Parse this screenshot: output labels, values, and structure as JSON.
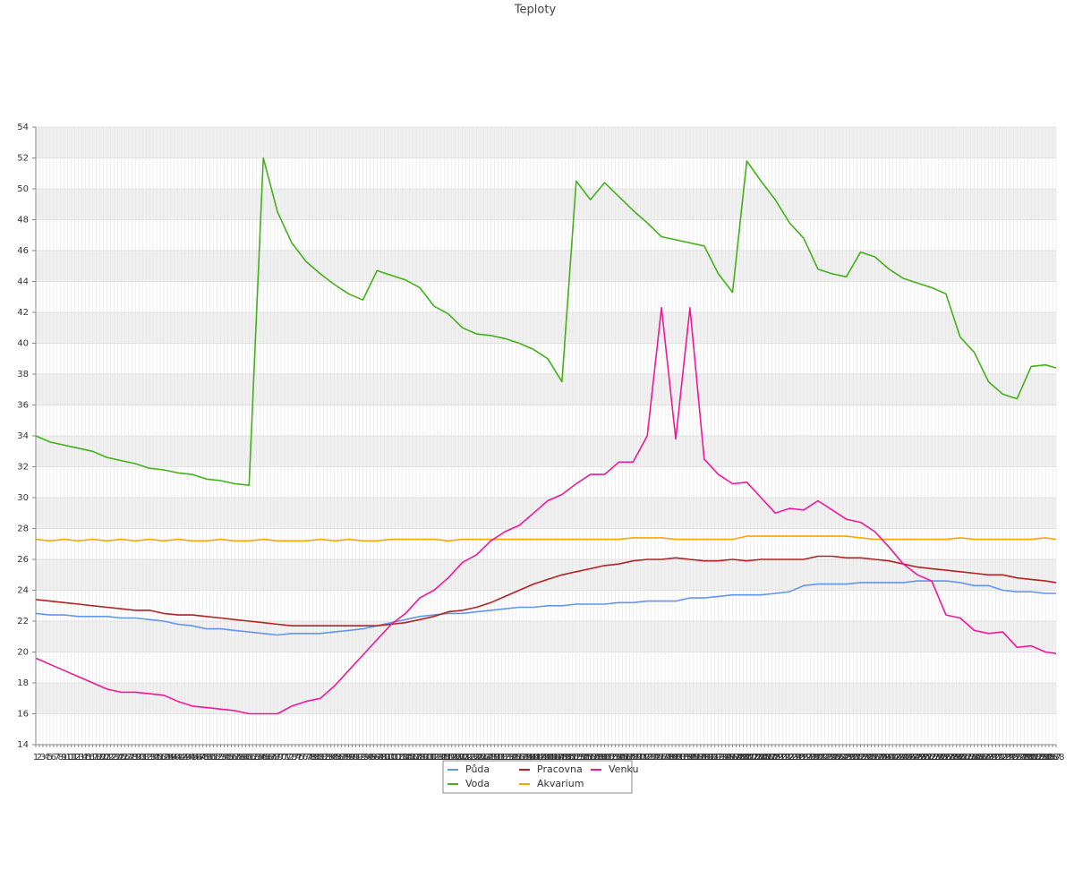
{
  "chart_data": {
    "type": "line",
    "title": "Teploty",
    "x": [
      1,
      5,
      9,
      13,
      17,
      21,
      25,
      29,
      33,
      37,
      41,
      45,
      49,
      53,
      57,
      61,
      65,
      69,
      73,
      77,
      81,
      85,
      89,
      93,
      97,
      101,
      105,
      109,
      113,
      117,
      121,
      125,
      129,
      133,
      137,
      141,
      145,
      149,
      153,
      157,
      161,
      165,
      169,
      173,
      177,
      181,
      185,
      189,
      193,
      197,
      201,
      205,
      209,
      213,
      217,
      221,
      225,
      229,
      233,
      237,
      241,
      245,
      249,
      253,
      257,
      261,
      265,
      269,
      273,
      277,
      281,
      285,
      288
    ],
    "xlim": [
      1,
      288
    ],
    "xticks": [
      1,
      2,
      3,
      4,
      5,
      6,
      7,
      8,
      9,
      10,
      11,
      12,
      13,
      14,
      15,
      16,
      17,
      18,
      19,
      20,
      21,
      22,
      23,
      24,
      25,
      26,
      27,
      28,
      29,
      30,
      31,
      32,
      33,
      34,
      35,
      36,
      37,
      38,
      39,
      40,
      41,
      42,
      43,
      44,
      45,
      46,
      47,
      48,
      49,
      50,
      51,
      52,
      53,
      54,
      55,
      56,
      57,
      58,
      59,
      60,
      61,
      62,
      63,
      64,
      65,
      66,
      67,
      68,
      69,
      70,
      71,
      72,
      73,
      74,
      75,
      76,
      77,
      78,
      79,
      80,
      81,
      82,
      83,
      84,
      85,
      86,
      87,
      88,
      89,
      90,
      91,
      92,
      93,
      94,
      95,
      96,
      97,
      98,
      99,
      100,
      101,
      102,
      103,
      104,
      105,
      106,
      107,
      108,
      109,
      110,
      111,
      112,
      113,
      114,
      115,
      116,
      117,
      118,
      119,
      120,
      121,
      122,
      123,
      124,
      125,
      126,
      127,
      128,
      129,
      130,
      131,
      132,
      133,
      134,
      135,
      136,
      137,
      138,
      139,
      140,
      141,
      142,
      143,
      144,
      145,
      146,
      147,
      148,
      149,
      150,
      151,
      152,
      153,
      154,
      155,
      156,
      157,
      158,
      159,
      160,
      161,
      162,
      163,
      164,
      165,
      166,
      167,
      168,
      169,
      170,
      171,
      172,
      173,
      174,
      175,
      176,
      177,
      178,
      179,
      180,
      181,
      182,
      183,
      184,
      185,
      186,
      187,
      188,
      189,
      190,
      191,
      192,
      193,
      194,
      195,
      196,
      197,
      198,
      199,
      200,
      201,
      202,
      203,
      204,
      205,
      206,
      207,
      208,
      209,
      210,
      211,
      212,
      213,
      214,
      215,
      216,
      217,
      218,
      219,
      220,
      221,
      222,
      223,
      224,
      225,
      226,
      227,
      228,
      229,
      230,
      231,
      232,
      233,
      234,
      235,
      236,
      237,
      238,
      239,
      240,
      241,
      242,
      243,
      244,
      245,
      246,
      247,
      248,
      249,
      250,
      251,
      252,
      253,
      254,
      255,
      256,
      257,
      258,
      259,
      260,
      261,
      262,
      263,
      264,
      265,
      266,
      267,
      268,
      269,
      270,
      271,
      272,
      273,
      274,
      275,
      276,
      277,
      278,
      279,
      280,
      281,
      282,
      283,
      284,
      285,
      286,
      287,
      288
    ],
    "ylim": [
      14,
      54
    ],
    "yticks": [
      14,
      16,
      18,
      20,
      22,
      24,
      26,
      28,
      30,
      32,
      34,
      36,
      38,
      40,
      42,
      44,
      46,
      48,
      50,
      52,
      54
    ],
    "grid": true,
    "series": [
      {
        "name": "Půda",
        "color": "#6495ed",
        "values": [
          22.5,
          22.4,
          22.4,
          22.3,
          22.3,
          22.3,
          22.2,
          22.2,
          22.1,
          22.0,
          21.8,
          21.7,
          21.5,
          21.5,
          21.4,
          21.3,
          21.2,
          21.1,
          21.2,
          21.2,
          21.2,
          21.3,
          21.4,
          21.5,
          21.7,
          21.9,
          22.1,
          22.3,
          22.4,
          22.5,
          22.5,
          22.6,
          22.7,
          22.8,
          22.9,
          22.9,
          23.0,
          23.0,
          23.1,
          23.1,
          23.1,
          23.2,
          23.2,
          23.3,
          23.3,
          23.3,
          23.5,
          23.5,
          23.6,
          23.7,
          23.7,
          23.7,
          23.8,
          23.9,
          24.3,
          24.4,
          24.4,
          24.4,
          24.5,
          24.5,
          24.5,
          24.5,
          24.6,
          24.6,
          24.6,
          24.5,
          24.3,
          24.3,
          24.0,
          23.9,
          23.9,
          23.8,
          23.8
        ]
      },
      {
        "name": "Voda",
        "color": "#44b01a",
        "values": [
          34.0,
          33.6,
          33.4,
          33.2,
          33.0,
          32.6,
          32.4,
          32.2,
          31.9,
          31.8,
          31.6,
          31.5,
          31.2,
          31.1,
          30.9,
          30.8,
          52.0,
          48.5,
          46.5,
          45.3,
          44.5,
          43.8,
          43.2,
          42.8,
          44.7,
          44.4,
          44.1,
          43.6,
          42.4,
          41.9,
          41.0,
          40.6,
          40.5,
          40.3,
          40.0,
          39.6,
          39.0,
          37.5,
          50.5,
          49.3,
          50.4,
          49.5,
          48.6,
          47.8,
          46.9,
          46.7,
          46.5,
          46.3,
          44.5,
          43.3,
          51.8,
          50.5,
          49.3,
          47.8,
          46.8,
          44.8,
          44.5,
          44.3,
          45.9,
          45.6,
          44.8,
          44.2,
          43.9,
          43.6,
          43.2,
          40.4,
          39.4,
          37.5,
          36.7,
          36.4,
          38.5,
          38.6,
          38.4
        ]
      },
      {
        "name": "Pracovna",
        "color": "#b22222",
        "values": [
          23.4,
          23.3,
          23.2,
          23.1,
          23.0,
          22.9,
          22.8,
          22.7,
          22.7,
          22.5,
          22.4,
          22.4,
          22.3,
          22.2,
          22.1,
          22.0,
          21.9,
          21.8,
          21.7,
          21.7,
          21.7,
          21.7,
          21.7,
          21.7,
          21.7,
          21.8,
          21.9,
          22.1,
          22.3,
          22.6,
          22.7,
          22.9,
          23.2,
          23.6,
          24.0,
          24.4,
          24.7,
          25.0,
          25.2,
          25.4,
          25.6,
          25.7,
          25.9,
          26.0,
          26.0,
          26.1,
          26.0,
          25.9,
          25.9,
          26.0,
          25.9,
          26.0,
          26.0,
          26.0,
          26.0,
          26.2,
          26.2,
          26.1,
          26.1,
          26.0,
          25.9,
          25.7,
          25.5,
          25.4,
          25.3,
          25.2,
          25.1,
          25.0,
          25.0,
          24.8,
          24.7,
          24.6,
          24.5
        ]
      },
      {
        "name": "Akvarium",
        "color": "#ffa500",
        "values": [
          27.3,
          27.2,
          27.3,
          27.2,
          27.3,
          27.2,
          27.3,
          27.2,
          27.3,
          27.2,
          27.3,
          27.2,
          27.2,
          27.3,
          27.2,
          27.2,
          27.3,
          27.2,
          27.2,
          27.2,
          27.3,
          27.2,
          27.3,
          27.2,
          27.2,
          27.3,
          27.3,
          27.3,
          27.3,
          27.2,
          27.3,
          27.3,
          27.3,
          27.3,
          27.3,
          27.3,
          27.3,
          27.3,
          27.3,
          27.3,
          27.3,
          27.3,
          27.4,
          27.4,
          27.4,
          27.3,
          27.3,
          27.3,
          27.3,
          27.3,
          27.5,
          27.5,
          27.5,
          27.5,
          27.5,
          27.5,
          27.5,
          27.5,
          27.4,
          27.3,
          27.3,
          27.3,
          27.3,
          27.3,
          27.3,
          27.4,
          27.3,
          27.3,
          27.3,
          27.3,
          27.3,
          27.4,
          27.3
        ]
      },
      {
        "name": "Venku",
        "color": "#f0189a",
        "values": [
          19.6,
          19.2,
          18.8,
          18.4,
          18.0,
          17.6,
          17.4,
          17.4,
          17.3,
          17.2,
          16.8,
          16.5,
          16.4,
          16.3,
          16.2,
          16.0,
          16.0,
          16.0,
          16.5,
          16.8,
          17.0,
          17.8,
          18.8,
          19.8,
          20.8,
          21.8,
          22.5,
          23.5,
          24.0,
          24.8,
          25.8,
          26.3,
          27.2,
          27.8,
          28.2,
          29.0,
          29.8,
          30.2,
          30.9,
          31.5,
          31.5,
          32.3,
          32.3,
          34.0,
          42.3,
          33.8,
          42.3,
          32.5,
          31.5,
          30.9,
          31.0,
          30.0,
          29.0,
          29.3,
          29.2,
          29.8,
          29.2,
          28.6,
          28.4,
          27.8,
          26.8,
          25.7,
          25.0,
          24.6,
          22.4,
          22.2,
          21.4,
          21.2,
          21.3,
          20.3,
          20.4,
          20.0,
          19.9
        ]
      }
    ]
  }
}
